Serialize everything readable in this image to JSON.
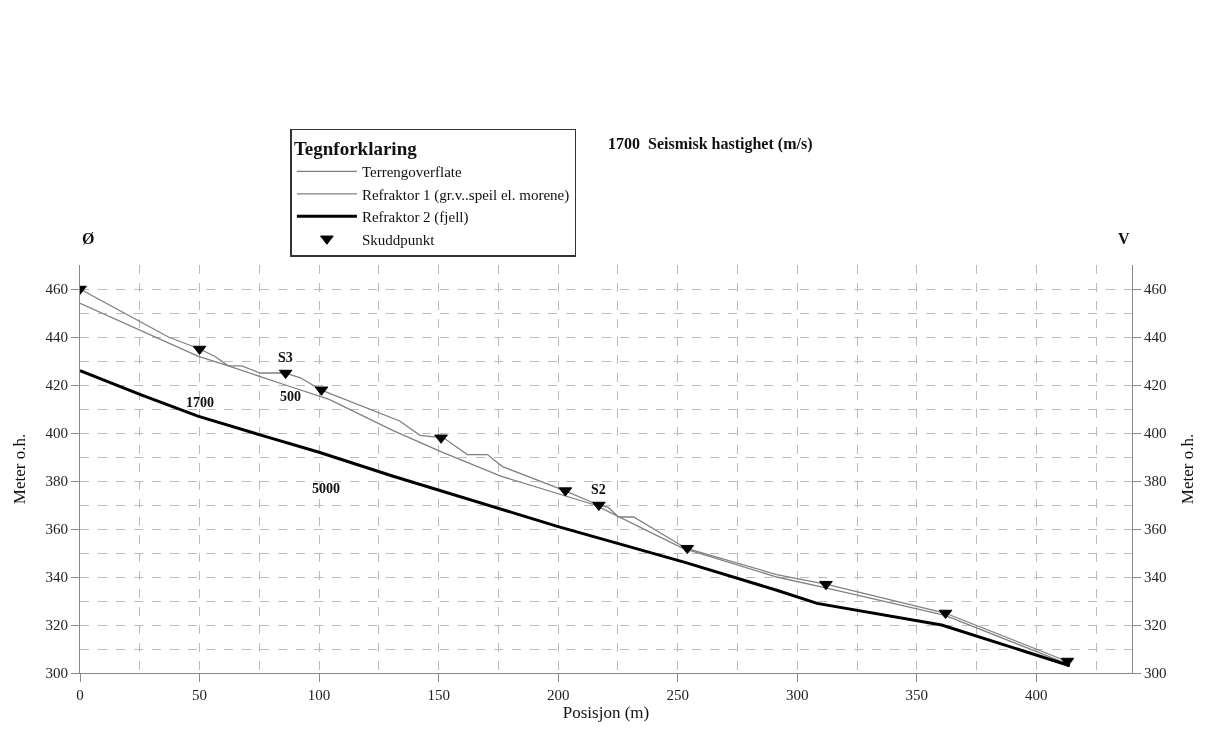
{
  "chart_data": {
    "type": "line",
    "legend_title": "Tegnforklaring",
    "xlabel": "Posisjon (m)",
    "ylabel": "Meter o.h.",
    "y2label": "Meter o.h.",
    "xlim": [
      0,
      440
    ],
    "xticks": [
      0,
      50,
      100,
      150,
      200,
      250,
      300,
      350,
      400
    ],
    "ylim": [
      300,
      470
    ],
    "yticks": [
      300,
      320,
      340,
      360,
      380,
      400,
      420,
      440,
      460
    ],
    "y2lim": [
      300,
      470
    ],
    "y2ticks": [
      300,
      320,
      340,
      360,
      380,
      400,
      420,
      440,
      460
    ],
    "grid": true,
    "legend": "top",
    "line_style": "solid",
    "series": [
      {
        "name": "Terrengoverflate",
        "color": "#808080",
        "x": [
          0,
          37,
          50,
          56.3,
          62,
          67.6,
          75.3,
          85.8,
          92.2,
          100.7,
          133.7,
          142.2,
          152,
          162,
          170.4,
          176.7,
          202.7,
          216.8,
          221,
          225.2,
          231.6,
          253.4,
          291.4,
          306.9,
          311.9,
          361.8,
          412.5
        ],
        "values": [
          460,
          440,
          435,
          432,
          428,
          428,
          425,
          425,
          423,
          418,
          405,
          399,
          398,
          391,
          391,
          386,
          376,
          370,
          369,
          365,
          365,
          352,
          341,
          338,
          337,
          325,
          305
        ]
      },
      {
        "name": "Refraktor 1 (gr.v..speil el. morene)",
        "color": "#808080",
        "x": [
          0,
          49.3,
          62,
          85.9,
          104.2,
          131,
          151.4,
          176,
          215.4,
          252,
          291.4,
          311.9,
          361.8,
          412.5
        ],
        "values": [
          454,
          432,
          428,
          420,
          414,
          401,
          392,
          382,
          370,
          352,
          340,
          335.5,
          324,
          304
        ]
      },
      {
        "name": "Refraktor 2 (fjell)",
        "color": "#000000",
        "x": [
          0,
          25.3,
          49.3,
          76,
          100,
          131,
          200,
          253.4,
          291.4,
          308.3,
          360.4,
          414
        ],
        "values": [
          426,
          416,
          407,
          399,
          392,
          382,
          361,
          346,
          334.5,
          329,
          320,
          303
        ]
      },
      {
        "name": "Skuddpunkt",
        "type": "scatter",
        "marker": "triangle",
        "color": "#000000",
        "x": [
          0,
          50,
          101,
          151,
          203,
          254,
          312,
          362,
          413
        ],
        "values": [
          460,
          435,
          418,
          398,
          376,
          352,
          337,
          325,
          305
        ]
      },
      {
        "type": "scatter",
        "marker": "triangle",
        "color": "#000000",
        "x": [
          86,
          217
        ],
        "values": [
          425,
          370
        ]
      }
    ],
    "annotations": [
      {
        "text": "S3",
        "x": 86,
        "y": 425
      },
      {
        "text": "S2",
        "x": 217,
        "y": 370
      },
      "1700  Seismisk hastighet (m/s)",
      {
        "text": "500",
        "x": 88,
        "y": 420
      },
      "1700",
      "5000",
      "Ø",
      "V"
    ]
  }
}
